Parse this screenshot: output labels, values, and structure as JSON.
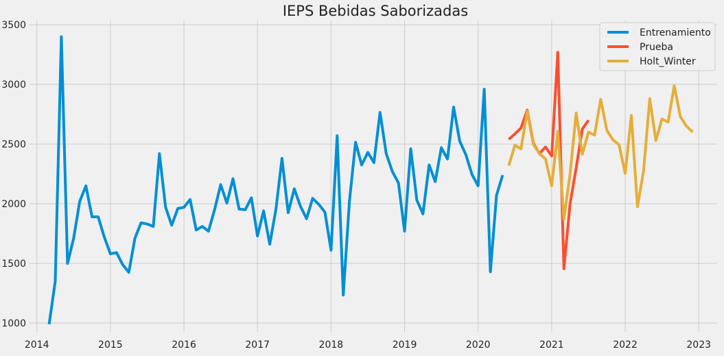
{
  "chart_data": {
    "type": "line",
    "title": "IEPS Bebidas Saborizadas",
    "xlabel": "",
    "ylabel": "",
    "xlim": [
      2013.9,
      2023.25
    ],
    "ylim": [
      925,
      3535
    ],
    "xticks": [
      2014,
      2015,
      2016,
      2017,
      2018,
      2019,
      2020,
      2021,
      2022,
      2023
    ],
    "yticks": [
      1000,
      1500,
      2000,
      2500,
      3000,
      3500
    ],
    "grid": true,
    "legend_position": "top-right",
    "series": [
      {
        "name": "Entrenamiento",
        "color": "#008fd5",
        "start": [
          2014,
          3
        ],
        "values": [
          990,
          1350,
          3400,
          1500,
          1710,
          2020,
          2150,
          1890,
          1890,
          1720,
          1580,
          1590,
          1490,
          1425,
          1710,
          1840,
          1830,
          1810,
          2420,
          1970,
          1820,
          1960,
          1970,
          2035,
          1780,
          1810,
          1770,
          1950,
          2160,
          2005,
          2210,
          1955,
          1950,
          2050,
          1730,
          1940,
          1660,
          1950,
          2380,
          1925,
          2125,
          1980,
          1875,
          2045,
          1995,
          1930,
          1610,
          2570,
          1235,
          2020,
          2515,
          2325,
          2430,
          2345,
          2765,
          2420,
          2270,
          2175,
          1770,
          2460,
          2030,
          1915,
          2325,
          2185,
          2470,
          2375,
          2810,
          2525,
          2410,
          2245,
          2150,
          2960,
          1430,
          2070,
          2240
        ]
      },
      {
        "name": "Prueba",
        "color": "#fc4f30",
        "start": [
          2020,
          6
        ],
        "values": [
          2540,
          2585,
          2635,
          2785,
          2510,
          2420,
          2475,
          2400,
          3270,
          1455,
          2000,
          2300,
          2625,
          2700
        ]
      },
      {
        "name": "Holt_Winter",
        "color": "#e5ae38",
        "start": [
          2020,
          6
        ],
        "values": [
          2320,
          2490,
          2460,
          2775,
          2500,
          2420,
          2375,
          2150,
          2605,
          1870,
          2250,
          2760,
          2415,
          2600,
          2575,
          2875,
          2615,
          2535,
          2495,
          2255,
          2740,
          1975,
          2275,
          2880,
          2530,
          2710,
          2685,
          2990,
          2730,
          2650,
          2600
        ]
      }
    ]
  }
}
